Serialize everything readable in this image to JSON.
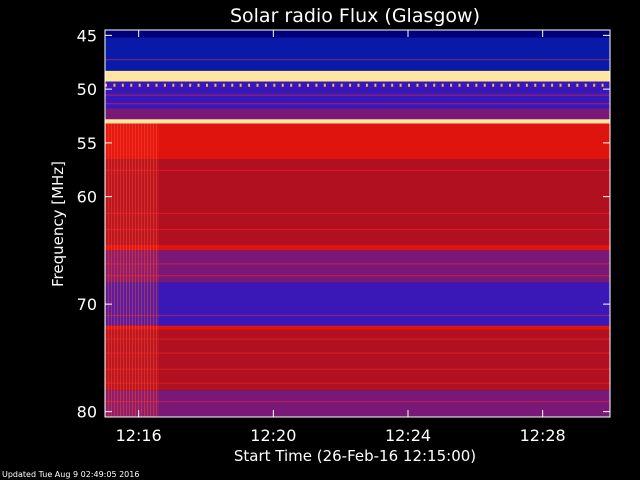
{
  "chart_data": {
    "type": "heatmap",
    "title": "Solar radio Flux (Glasgow)",
    "xlabel": "Start Time (26-Feb-16 12:15:00)",
    "ylabel": "Frequency [MHz]",
    "x_unit": "minutes after 12:15:00",
    "xlim": [
      0,
      15
    ],
    "y_unit": "MHz",
    "ylim": [
      44.5,
      80.5
    ],
    "x_ticks": [
      {
        "value": 1,
        "label": "12:16"
      },
      {
        "value": 5,
        "label": "12:20"
      },
      {
        "value": 9,
        "label": "12:24"
      },
      {
        "value": 13,
        "label": "12:28"
      }
    ],
    "y_ticks": [
      {
        "value": 45,
        "label": "45"
      },
      {
        "value": 50,
        "label": "50"
      },
      {
        "value": 55,
        "label": "55"
      },
      {
        "value": 60,
        "label": "60"
      },
      {
        "value": 70,
        "label": "70"
      },
      {
        "value": 80,
        "label": "80"
      }
    ],
    "frequency_bands": [
      {
        "from": 44.5,
        "to": 45.2,
        "level": "deep-blue"
      },
      {
        "from": 45.2,
        "to": 48.3,
        "level": "low"
      },
      {
        "from": 48.3,
        "to": 49.3,
        "level": "saturated"
      },
      {
        "from": 49.3,
        "to": 51.8,
        "level": "low-mid"
      },
      {
        "from": 51.8,
        "to": 52.8,
        "level": "mid"
      },
      {
        "from": 52.8,
        "to": 53.2,
        "level": "saturated"
      },
      {
        "from": 53.2,
        "to": 56.5,
        "level": "high"
      },
      {
        "from": 56.5,
        "to": 64.5,
        "level": "mid-high"
      },
      {
        "from": 64.5,
        "to": 65.0,
        "level": "high"
      },
      {
        "from": 65.0,
        "to": 68.0,
        "level": "mid"
      },
      {
        "from": 68.0,
        "to": 72.0,
        "level": "low-mid"
      },
      {
        "from": 72.0,
        "to": 72.4,
        "level": "high"
      },
      {
        "from": 72.4,
        "to": 78.0,
        "level": "mid-high"
      },
      {
        "from": 78.0,
        "to": 80.5,
        "level": "mid"
      }
    ],
    "grid": false,
    "colormap": [
      "#000040",
      "#0a10a8",
      "#3a16c8",
      "#6a1a9a",
      "#b41228",
      "#ff1a10",
      "#ffa040",
      "#ffffff"
    ]
  },
  "footer": {
    "updated": "Updated Tue Aug  9 02:49:05 2016"
  }
}
